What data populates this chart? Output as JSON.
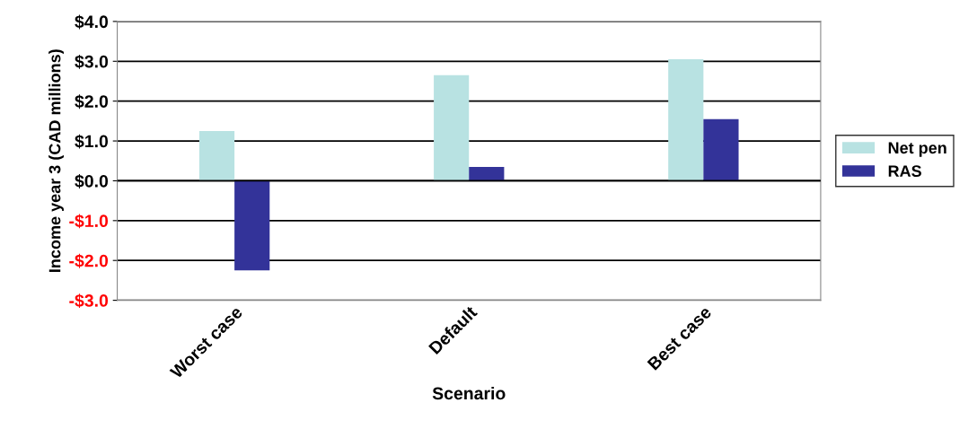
{
  "chart_data": {
    "type": "bar",
    "xlabel": "Scenario",
    "ylabel": "Income year 3 (CAD millions)",
    "categories": [
      "Worst case",
      "Default",
      "Best case"
    ],
    "series": [
      {
        "name": "Net pen",
        "color": "#b8e2e2",
        "values": [
          1.25,
          2.65,
          3.05
        ]
      },
      {
        "name": "RAS",
        "color": "#333399",
        "values": [
          -2.25,
          0.35,
          1.55
        ]
      }
    ],
    "ylim": [
      -3,
      4
    ],
    "yticks": [
      {
        "value": -3,
        "label": "-$3.0"
      },
      {
        "value": -2,
        "label": "-$2.0"
      },
      {
        "value": -1,
        "label": "-$1.0"
      },
      {
        "value": 0,
        "label": "$0.0"
      },
      {
        "value": 1,
        "label": "$1.0"
      },
      {
        "value": 2,
        "label": "$2.0"
      },
      {
        "value": 3,
        "label": "$3.0"
      },
      {
        "value": 4,
        "label": "$4.0"
      }
    ],
    "grid": "y",
    "legend": "right"
  }
}
